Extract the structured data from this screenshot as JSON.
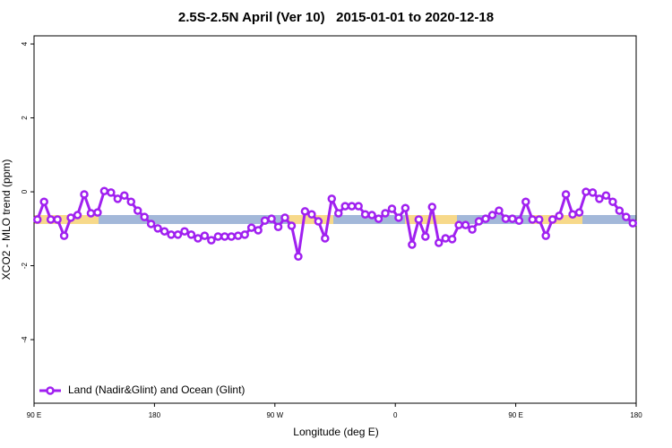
{
  "chart_data": {
    "type": "line",
    "title": "2.5S-2.5N April (Ver 10)   2015-01-01 to 2020-12-18",
    "x_label": "Longitude (deg E)",
    "y_label": "XCO2 - MLO trend (ppm)",
    "x": [
      92.5,
      97.5,
      102.5,
      107.5,
      112.5,
      117.5,
      122.5,
      127.5,
      132.5,
      137.5,
      142.5,
      147.5,
      152.5,
      157.5,
      162.5,
      167.5,
      172.5,
      177.5,
      182.5,
      187.5,
      192.5,
      197.5,
      202.5,
      207.5,
      212.5,
      217.5,
      222.5,
      227.5,
      232.5,
      237.5,
      242.5,
      247.5,
      252.5,
      257.5,
      262.5,
      267.5,
      272.5,
      277.5,
      282.5,
      287.5,
      292.5,
      297.5,
      302.5,
      307.5,
      312.5,
      317.5,
      322.5,
      327.5,
      332.5,
      337.5,
      342.5,
      347.5,
      352.5,
      357.5,
      362.5,
      367.5,
      372.5,
      377.5,
      382.5,
      387.5,
      392.5,
      397.5,
      402.5,
      407.5,
      412.5,
      417.5,
      422.5,
      427.5,
      432.5,
      437.5,
      442.5,
      447.5,
      452.5,
      457.5,
      462.5,
      467.5,
      472.5,
      477.5,
      482.5,
      487.5,
      492.5,
      497.5,
      502.5,
      507.5,
      512.5,
      517.5,
      522.5,
      527.5,
      532.5,
      537.5
    ],
    "series": [
      {
        "name": "Land (Nadir&Glint) and Ocean (Glint)",
        "color": "#a020f0",
        "values": [
          -0.75,
          -0.27,
          -0.75,
          -0.75,
          -1.19,
          -0.7,
          -0.63,
          -0.07,
          -0.58,
          -0.56,
          0.02,
          -0.02,
          -0.19,
          -0.1,
          -0.27,
          -0.51,
          -0.68,
          -0.87,
          -0.99,
          -1.07,
          -1.16,
          -1.16,
          -1.07,
          -1.16,
          -1.26,
          -1.19,
          -1.31,
          -1.21,
          -1.21,
          -1.21,
          -1.19,
          -1.16,
          -0.97,
          -1.04,
          -0.78,
          -0.73,
          -0.95,
          -0.7,
          -0.92,
          -1.75,
          -0.53,
          -0.61,
          -0.8,
          -1.26,
          -0.19,
          -0.58,
          -0.39,
          -0.39,
          -0.39,
          -0.61,
          -0.63,
          -0.73,
          -0.58,
          -0.46,
          -0.7,
          -0.44,
          -1.43,
          -0.75,
          -1.21,
          -0.41,
          -1.38,
          -1.26,
          -1.28,
          -0.9,
          -0.9,
          -1.02,
          -0.8,
          -0.73,
          -0.63,
          -0.51,
          -0.73,
          -0.73,
          -0.78,
          -0.27,
          -0.75,
          -0.75,
          -1.19,
          -0.75,
          -0.65,
          -0.07,
          -0.61,
          -0.56,
          0.0,
          -0.02,
          -0.19,
          -0.1,
          -0.27,
          -0.51,
          -0.68,
          -0.85
        ]
      }
    ],
    "xlim": [
      90,
      540
    ],
    "xticks": [
      {
        "value": 90,
        "label": "90 E"
      },
      {
        "value": 180,
        "label": "180"
      },
      {
        "value": 270,
        "label": "90 W"
      },
      {
        "value": 360,
        "label": "0"
      },
      {
        "value": 450,
        "label": "90 E"
      },
      {
        "value": 540,
        "label": "180"
      }
    ],
    "ylim": [
      -5.72,
      4.22
    ],
    "yticks": [
      -4,
      -2,
      0,
      2,
      4
    ],
    "legend": "bottom-left",
    "grid": false
  }
}
